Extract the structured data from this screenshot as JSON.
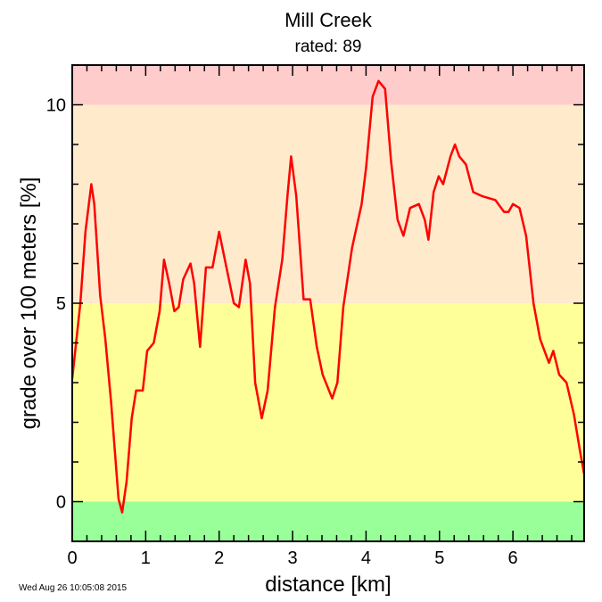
{
  "chart_data": {
    "type": "line",
    "title": "Mill Creek",
    "subtitle": "rated: 89",
    "xlabel": "distance [km]",
    "ylabel": "grade over 100 meters [%]",
    "xlim": [
      0,
      6.97
    ],
    "ylim": [
      -1,
      11
    ],
    "xticks": [
      0,
      1,
      2,
      3,
      4,
      5,
      6
    ],
    "xtick_labels": [
      "0",
      "1",
      "2",
      "3",
      "4",
      "5",
      "6"
    ],
    "x_minor_step": 0.2,
    "yticks": [
      0,
      5,
      10
    ],
    "ytick_labels": [
      "0",
      "5",
      "10"
    ],
    "y_minor_step": 1,
    "grid": false,
    "bands": [
      {
        "from": -1,
        "to": 0,
        "color": "#99ff99"
      },
      {
        "from": 0,
        "to": 5,
        "color": "#ffff99"
      },
      {
        "from": 5,
        "to": 10,
        "color": "#ffeacc"
      },
      {
        "from": 10,
        "to": 11,
        "color": "#ffcccc"
      }
    ],
    "series": [
      {
        "name": "grade",
        "color": "#ff0000",
        "x": [
          0,
          0.11,
          0.18,
          0.26,
          0.3,
          0.38,
          0.45,
          0.53,
          0.63,
          0.68,
          0.74,
          0.81,
          0.87,
          0.96,
          1.02,
          1.11,
          1.19,
          1.25,
          1.32,
          1.39,
          1.45,
          1.51,
          1.61,
          1.66,
          1.74,
          1.82,
          1.91,
          2.0,
          2.1,
          2.2,
          2.27,
          2.36,
          2.42,
          2.49,
          2.58,
          2.66,
          2.76,
          2.86,
          2.93,
          2.98,
          3.05,
          3.15,
          3.24,
          3.33,
          3.41,
          3.54,
          3.61,
          3.69,
          3.81,
          3.94,
          4.0,
          4.09,
          4.17,
          4.26,
          4.34,
          4.43,
          4.51,
          4.6,
          4.72,
          4.8,
          4.85,
          4.92,
          4.99,
          5.05,
          5.15,
          5.21,
          5.27,
          5.36,
          5.46,
          5.58,
          5.76,
          5.88,
          5.94,
          6.0,
          6.09,
          6.18,
          6.28,
          6.37,
          6.49,
          6.55,
          6.63,
          6.73,
          6.83,
          6.92,
          6.97
        ],
        "y": [
          3.1,
          5.0,
          6.8,
          8.0,
          7.5,
          5.2,
          4.1,
          2.5,
          0.07,
          -0.27,
          0.5,
          2.1,
          2.8,
          2.8,
          3.8,
          4.0,
          4.8,
          6.1,
          5.5,
          4.8,
          4.9,
          5.6,
          6.0,
          5.5,
          3.9,
          5.9,
          5.9,
          6.8,
          5.9,
          5.0,
          4.9,
          6.1,
          5.5,
          3.0,
          2.1,
          2.8,
          4.9,
          6.1,
          7.7,
          8.7,
          7.7,
          5.1,
          5.1,
          3.9,
          3.2,
          2.6,
          3.0,
          4.9,
          6.4,
          7.5,
          8.4,
          10.2,
          10.6,
          10.4,
          8.6,
          7.1,
          6.7,
          7.4,
          7.5,
          7.1,
          6.6,
          7.8,
          8.2,
          8.0,
          8.7,
          9.0,
          8.7,
          8.5,
          7.8,
          7.7,
          7.6,
          7.3,
          7.3,
          7.5,
          7.4,
          6.7,
          5.0,
          4.1,
          3.5,
          3.8,
          3.2,
          3.0,
          2.2,
          1.2,
          0.7
        ]
      }
    ]
  },
  "footer": {
    "timestamp": "Wed Aug 26 10:05:08 2015"
  }
}
